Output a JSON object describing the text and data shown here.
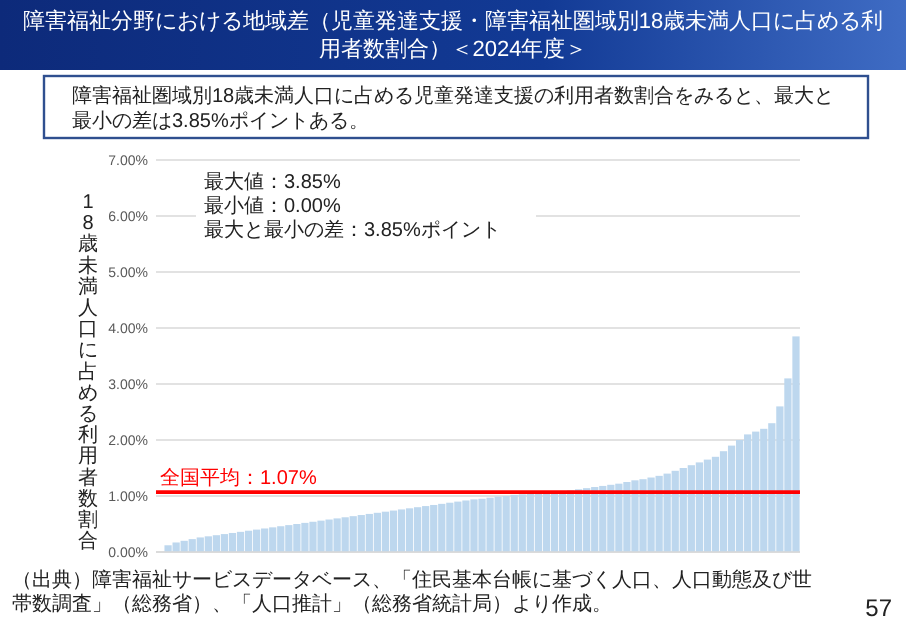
{
  "chart_data": {
    "type": "bar",
    "title": "障害福祉分野における地域差（児童発達支援・障害福祉圏域別18歳未満人口に占める利用者数割合）＜2024年度＞",
    "subtitle": "障害福祉圏域別18歳未満人口に占める児童発達支援の利用者数割合をみると、最大と最小の差は3.85%ポイントある。",
    "ylabel": "18歳未満人口に占める利用者数割合",
    "categories": [
      null,
      null,
      null,
      null,
      null,
      null,
      null,
      null,
      null,
      null,
      null,
      null,
      null,
      null,
      null,
      null,
      null,
      null,
      null,
      null,
      null,
      null,
      null,
      null,
      null,
      null,
      null,
      null,
      null,
      null,
      null,
      null,
      null,
      null,
      null,
      null,
      null,
      null,
      null,
      null,
      null,
      null,
      null,
      null,
      null,
      null,
      null,
      null,
      null,
      null,
      null,
      null,
      null,
      null,
      null,
      null,
      null,
      null,
      null,
      null,
      null,
      null,
      null,
      null,
      null,
      null,
      null,
      null,
      null,
      null,
      null,
      null,
      null,
      null,
      null,
      null,
      null,
      null,
      null,
      null
    ],
    "values": [
      0.0,
      0.12,
      0.17,
      0.2,
      0.23,
      0.26,
      0.28,
      0.3,
      0.32,
      0.34,
      0.36,
      0.38,
      0.4,
      0.42,
      0.44,
      0.46,
      0.48,
      0.5,
      0.52,
      0.54,
      0.56,
      0.58,
      0.6,
      0.62,
      0.64,
      0.66,
      0.68,
      0.7,
      0.72,
      0.74,
      0.76,
      0.78,
      0.8,
      0.82,
      0.84,
      0.86,
      0.88,
      0.9,
      0.92,
      0.94,
      0.95,
      0.97,
      0.99,
      1.0,
      1.02,
      1.03,
      1.04,
      1.05,
      1.06,
      1.07,
      1.08,
      1.1,
      1.12,
      1.14,
      1.16,
      1.18,
      1.2,
      1.22,
      1.25,
      1.28,
      1.3,
      1.33,
      1.36,
      1.4,
      1.45,
      1.5,
      1.55,
      1.6,
      1.65,
      1.7,
      1.8,
      1.9,
      2.0,
      2.1,
      2.15,
      2.2,
      2.3,
      2.6,
      3.1,
      3.85
    ],
    "color": "#bdd7ee",
    "ylim": [
      0,
      7
    ],
    "yticks": [
      {
        "value": 0,
        "label": "0.00%"
      },
      {
        "value": 1,
        "label": "1.00%"
      },
      {
        "value": 2,
        "label": "2.00%"
      },
      {
        "value": 3,
        "label": "3.00%"
      },
      {
        "value": 4,
        "label": "4.00%"
      },
      {
        "value": 5,
        "label": "5.00%"
      },
      {
        "value": 6,
        "label": "6.00%"
      },
      {
        "value": 7,
        "label": "7.00%"
      }
    ],
    "grid": "y",
    "ref_lines": [
      {
        "axis": "y",
        "value": 1.07,
        "label": "全国平均：1.07%",
        "color": "#ff0000"
      }
    ],
    "annotations": [
      "最大値：3.85%",
      "最小値：0.00%",
      "最大と最小の差：3.85%ポイント",
      "（出典）障害福祉サービスデータベース、「住民基本台帳に基づく人口、人口動態及び世帯数調査」（総務省）、「人口推計」（総務省統計局）より作成。",
      "57"
    ]
  }
}
